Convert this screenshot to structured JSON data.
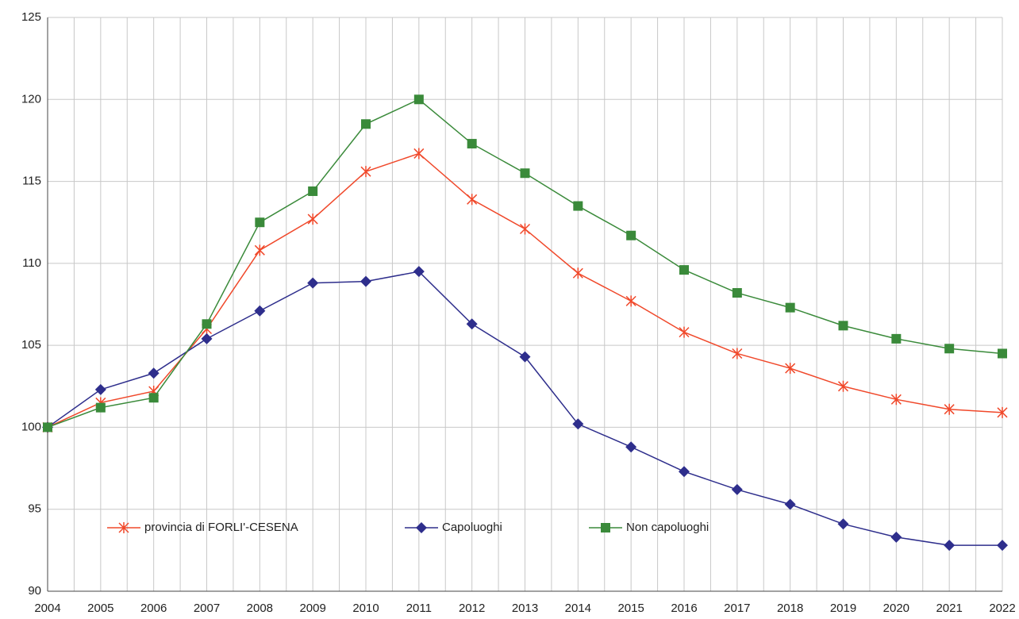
{
  "chart_data": {
    "type": "line",
    "x": [
      2004,
      2005,
      2006,
      2007,
      2008,
      2009,
      2010,
      2011,
      2012,
      2013,
      2014,
      2015,
      2016,
      2017,
      2018,
      2019,
      2020,
      2021,
      2022
    ],
    "xlim": [
      2004,
      2022
    ],
    "xticks": [
      2004,
      2005,
      2006,
      2007,
      2008,
      2009,
      2010,
      2011,
      2012,
      2013,
      2014,
      2015,
      2016,
      2017,
      2018,
      2019,
      2020,
      2021,
      2022
    ],
    "ylim": [
      90,
      125
    ],
    "yticks": [
      90,
      95,
      100,
      105,
      110,
      115,
      120,
      125
    ],
    "grid": true,
    "legend": "bottom",
    "series": [
      {
        "name": "provincia di FORLI'-CESENA",
        "color": "#f0482a",
        "marker": "x",
        "values": [
          100,
          101.5,
          102.2,
          106.0,
          110.8,
          112.7,
          115.6,
          116.7,
          113.9,
          112.1,
          109.4,
          107.7,
          105.8,
          104.5,
          103.6,
          102.5,
          101.7,
          101.1,
          100.9
        ]
      },
      {
        "name": "Capoluoghi",
        "color": "#2e2e8c",
        "marker": "diamond",
        "values": [
          100,
          102.3,
          103.3,
          105.4,
          107.1,
          108.8,
          108.9,
          109.5,
          106.3,
          104.3,
          100.2,
          98.8,
          97.3,
          96.2,
          95.3,
          94.1,
          93.3,
          92.8,
          92.8
        ]
      },
      {
        "name": "Non capoluoghi",
        "color": "#3a8a3a",
        "marker": "square",
        "values": [
          100,
          101.2,
          101.8,
          106.3,
          112.5,
          114.4,
          118.5,
          120.0,
          117.3,
          115.5,
          113.5,
          111.7,
          109.6,
          108.2,
          107.3,
          106.2,
          105.4,
          104.8,
          104.5
        ]
      }
    ]
  }
}
